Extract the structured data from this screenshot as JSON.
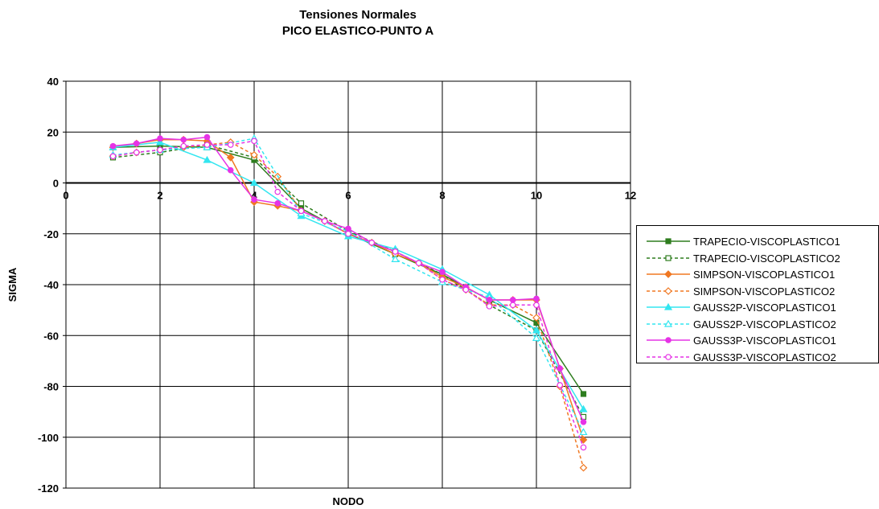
{
  "chart_data": {
    "type": "line",
    "title": "Tensiones Normales",
    "subtitle": "PICO ELASTICO-PUNTO A",
    "xlabel": "NODO",
    "ylabel": "SIGMA",
    "xlim": [
      0,
      12
    ],
    "ylim": [
      -120,
      40
    ],
    "x_ticks": [
      0,
      2,
      4,
      6,
      8,
      10,
      12
    ],
    "y_ticks": [
      40,
      20,
      0,
      -20,
      -40,
      -60,
      -80,
      -100,
      -120
    ],
    "grid": true,
    "legend_position": "right",
    "series": [
      {
        "name": "TRAPECIO-VISCOPLASTICO1",
        "color": "#2E7D1E",
        "dash": "solid",
        "marker": "square",
        "x": [
          1,
          2,
          3,
          4,
          5,
          6,
          7,
          8,
          9,
          10,
          11
        ],
        "y": [
          14,
          14.5,
          14,
          9,
          -10,
          -20,
          -28,
          -36,
          -46,
          -55,
          -83
        ]
      },
      {
        "name": "TRAPECIO-VISCOPLASTICO2",
        "color": "#2E7D1E",
        "dash": "dashed",
        "marker": "square-open",
        "x": [
          1,
          2,
          3,
          4,
          5,
          6,
          7,
          8,
          9,
          10,
          11
        ],
        "y": [
          10,
          12,
          15,
          10,
          -8,
          -19,
          -27,
          -36,
          -48,
          -58,
          -92
        ]
      },
      {
        "name": "SIMPSON-VISCOPLASTICO1",
        "color": "#F07822",
        "dash": "solid",
        "marker": "diamond",
        "x": [
          1,
          1.5,
          2,
          2.5,
          3,
          3.5,
          4,
          4.5,
          5,
          5.5,
          6,
          6.5,
          7,
          7.5,
          8,
          8.5,
          9,
          9.5,
          10,
          10.5,
          11
        ],
        "y": [
          14,
          15.5,
          17,
          17,
          16.5,
          10,
          -7.5,
          -9,
          -11,
          -15,
          -20,
          -23.5,
          -28,
          -31.5,
          -37,
          -41,
          -46,
          -46,
          -46,
          -73,
          -101
        ]
      },
      {
        "name": "SIMPSON-VISCOPLASTICO2",
        "color": "#F07822",
        "dash": "dashed",
        "marker": "diamond-open",
        "x": [
          1,
          1.5,
          2,
          2.5,
          3,
          3.5,
          4,
          4.5,
          5,
          5.5,
          6,
          6.5,
          7,
          7.5,
          8,
          8.5,
          9,
          9.5,
          10,
          10.5,
          11
        ],
        "y": [
          10.5,
          12,
          13,
          14,
          15,
          16,
          11,
          2.5,
          -11,
          -15,
          -20,
          -23.5,
          -28,
          -31.5,
          -38,
          -42,
          -48,
          -48,
          -53,
          -80,
          -112
        ]
      },
      {
        "name": "GAUSS2P-VISCOPLASTICO1",
        "color": "#33E6F0",
        "dash": "solid",
        "marker": "triangle",
        "x": [
          1,
          2,
          3,
          4,
          5,
          6,
          7,
          8,
          9,
          10,
          11
        ],
        "y": [
          14,
          16,
          9,
          0,
          -13,
          -21,
          -26,
          -34,
          -44,
          -58,
          -89
        ]
      },
      {
        "name": "GAUSS2P-VISCOPLASTICO2",
        "color": "#33E6F0",
        "dash": "dashed",
        "marker": "triangle-open",
        "x": [
          1,
          2,
          3,
          4,
          5,
          6,
          7,
          8,
          9,
          10,
          11
        ],
        "y": [
          11,
          13,
          14,
          17.5,
          -12,
          -19,
          -30,
          -39,
          -45,
          -61,
          -98
        ]
      },
      {
        "name": "GAUSS3P-VISCOPLASTICO1",
        "color": "#E633E6",
        "dash": "solid",
        "marker": "circle",
        "x": [
          1,
          1.5,
          2,
          2.5,
          3,
          3.5,
          4,
          4.5,
          5,
          5.5,
          6,
          6.5,
          7,
          7.5,
          8,
          8.5,
          9,
          9.5,
          10,
          10.5,
          11
        ],
        "y": [
          14.5,
          15.5,
          17.5,
          17,
          18,
          5,
          -6.5,
          -8,
          -11,
          -15,
          -18,
          -23.5,
          -27,
          -31.5,
          -35,
          -41,
          -46,
          -46,
          -45.5,
          -73,
          -94
        ]
      },
      {
        "name": "GAUSS3P-VISCOPLASTICO2",
        "color": "#E633E6",
        "dash": "dashed",
        "marker": "circle-open",
        "x": [
          1,
          1.5,
          2,
          2.5,
          3,
          3.5,
          4,
          4.5,
          5,
          5.5,
          6,
          6.5,
          7,
          7.5,
          8,
          8.5,
          9,
          9.5,
          10,
          10.5,
          11
        ],
        "y": [
          10.5,
          12,
          13,
          14.5,
          15,
          15,
          16.5,
          -3.5,
          -11,
          -15,
          -20,
          -23.5,
          -27,
          -31.5,
          -38,
          -42,
          -48.5,
          -48,
          -48,
          -79.5,
          -104
        ]
      }
    ]
  }
}
